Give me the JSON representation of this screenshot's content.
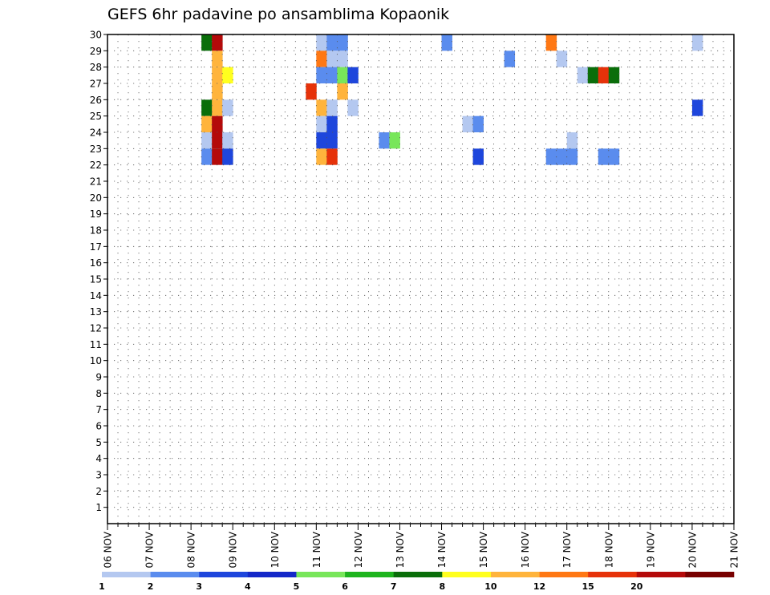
{
  "chart_data": {
    "type": "heatmap",
    "title": "GEFS 6hr padavine po ansamblima Kopaonik",
    "xlabel": "",
    "ylabel": "",
    "x_axis": "date, 6-hour steps from 06 NOV 00Z to 21 NOV 00Z",
    "x_ticks": [
      "06 NOV",
      "07 NOV",
      "08 NOV",
      "09 NOV",
      "10 NOV",
      "11 NOV",
      "12 NOV",
      "13 NOV",
      "14 NOV",
      "15 NOV",
      "16 NOV",
      "17 NOV",
      "18 NOV",
      "19 NOV",
      "20 NOV",
      "21 NOV"
    ],
    "y_ticks": [
      1,
      2,
      3,
      4,
      5,
      6,
      7,
      8,
      9,
      10,
      11,
      12,
      13,
      14,
      15,
      16,
      17,
      18,
      19,
      20,
      21,
      22,
      23,
      24,
      25,
      26,
      27,
      28,
      29,
      30
    ],
    "y_range": [
      0,
      30
    ],
    "grid": true,
    "legend": "bottom colorbar",
    "colorbar": {
      "labels": [
        "1",
        "2",
        "3",
        "4",
        "5",
        "6",
        "7",
        "8",
        "10",
        "12",
        "15",
        "20"
      ],
      "colors": [
        "#b4c8f0",
        "#5a8cee",
        "#1e46dc",
        "#1428c8",
        "#78e65a",
        "#1eb41e",
        "#0a6e0a",
        "#ffff1e",
        "#ffb43c",
        "#ff7814",
        "#e6320a",
        "#b40a0a",
        "#780000"
      ]
    },
    "cells_note": "each cell: [member (1-30 rows, 0 = bottom strip), start date, mm class index into colorbar.colors]",
    "cells": [
      [
        30,
        "08 NOV 06Z",
        6
      ],
      [
        30,
        "08 NOV 12Z",
        11
      ],
      [
        30,
        "11 NOV 00Z",
        0
      ],
      [
        30,
        "11 NOV 06Z",
        1
      ],
      [
        30,
        "11 NOV 12Z",
        1
      ],
      [
        30,
        "14 NOV 00Z",
        1
      ],
      [
        30,
        "16 NOV 12Z",
        9
      ],
      [
        30,
        "20 NOV 00Z",
        0
      ],
      [
        29,
        "08 NOV 12Z",
        8
      ],
      [
        29,
        "11 NOV 00Z",
        9
      ],
      [
        29,
        "11 NOV 06Z",
        0
      ],
      [
        29,
        "11 NOV 12Z",
        0
      ],
      [
        29,
        "15 NOV 12Z",
        1
      ],
      [
        29,
        "16 NOV 18Z",
        0
      ],
      [
        28,
        "08 NOV 12Z",
        8
      ],
      [
        28,
        "08 NOV 18Z",
        7
      ],
      [
        28,
        "11 NOV 00Z",
        1
      ],
      [
        28,
        "11 NOV 06Z",
        1
      ],
      [
        28,
        "11 NOV 12Z",
        4
      ],
      [
        28,
        "11 NOV 18Z",
        2
      ],
      [
        28,
        "17 NOV 06Z",
        0
      ],
      [
        28,
        "17 NOV 12Z",
        6
      ],
      [
        28,
        "17 NOV 18Z",
        10
      ],
      [
        28,
        "18 NOV 00Z",
        6
      ],
      [
        27,
        "08 NOV 12Z",
        8
      ],
      [
        27,
        "10 NOV 18Z",
        10
      ],
      [
        27,
        "11 NOV 12Z",
        8
      ],
      [
        26,
        "08 NOV 06Z",
        6
      ],
      [
        26,
        "08 NOV 12Z",
        8
      ],
      [
        26,
        "08 NOV 18Z",
        0
      ],
      [
        26,
        "11 NOV 00Z",
        8
      ],
      [
        26,
        "11 NOV 06Z",
        0
      ],
      [
        26,
        "11 NOV 18Z",
        0
      ],
      [
        26,
        "20 NOV 00Z",
        2
      ],
      [
        25,
        "08 NOV 06Z",
        8
      ],
      [
        25,
        "08 NOV 12Z",
        11
      ],
      [
        25,
        "11 NOV 00Z",
        0
      ],
      [
        25,
        "11 NOV 06Z",
        2
      ],
      [
        25,
        "14 NOV 12Z",
        0
      ],
      [
        25,
        "14 NOV 18Z",
        1
      ],
      [
        24,
        "08 NOV 06Z",
        0
      ],
      [
        24,
        "08 NOV 12Z",
        11
      ],
      [
        24,
        "08 NOV 18Z",
        0
      ],
      [
        24,
        "11 NOV 00Z",
        2
      ],
      [
        24,
        "11 NOV 06Z",
        2
      ],
      [
        24,
        "12 NOV 12Z",
        1
      ],
      [
        24,
        "12 NOV 18Z",
        4
      ],
      [
        24,
        "17 NOV 00Z",
        0
      ],
      [
        23,
        "08 NOV 06Z",
        1
      ],
      [
        23,
        "08 NOV 12Z",
        11
      ],
      [
        23,
        "08 NOV 18Z",
        2
      ],
      [
        23,
        "11 NOV 00Z",
        8
      ],
      [
        23,
        "11 NOV 06Z",
        10
      ],
      [
        23,
        "14 NOV 18Z",
        2
      ],
      [
        23,
        "16 NOV 12Z",
        1
      ],
      [
        23,
        "16 NOV 18Z",
        1
      ],
      [
        23,
        "17 NOV 00Z",
        1
      ],
      [
        23,
        "17 NOV 18Z",
        1
      ],
      [
        23,
        "18 NOV 00Z",
        1
      ]
    ]
  }
}
